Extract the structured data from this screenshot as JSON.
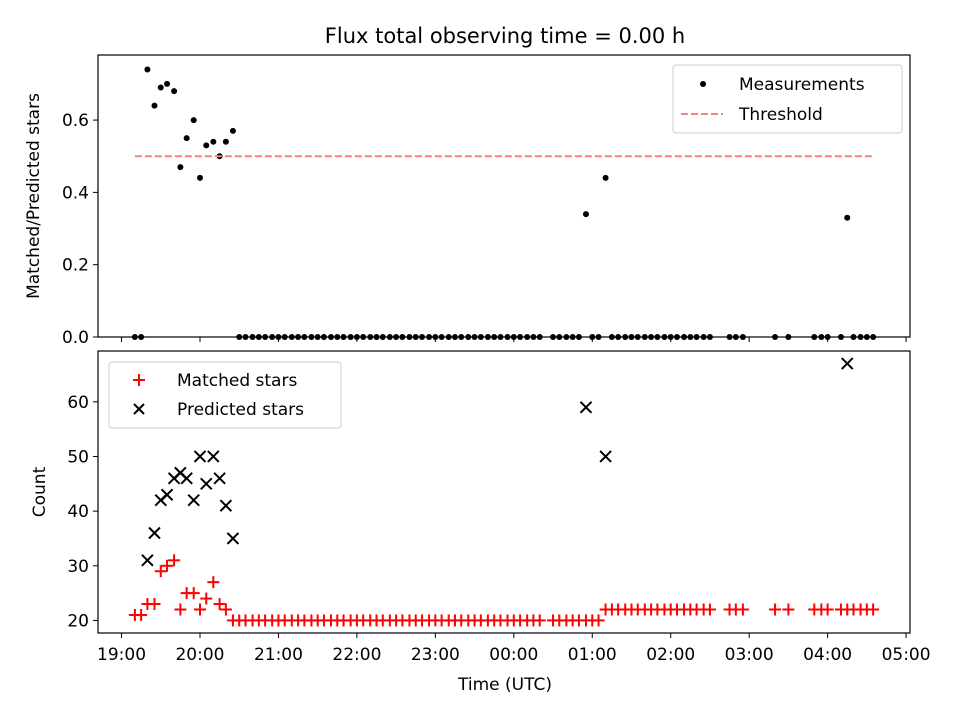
{
  "figure": {
    "title": "Flux total observing time = 0.00 h",
    "xlabel": "Time (UTC)"
  },
  "colors": {
    "measurement": "#000000",
    "threshold": "#ff7f7f",
    "matched": "#ff0000",
    "predicted": "#000000"
  },
  "x_ticks": [
    "19:00",
    "20:00",
    "21:00",
    "22:00",
    "23:00",
    "00:00",
    "01:00",
    "02:00",
    "03:00",
    "04:00",
    "05:00"
  ],
  "chart_data": [
    {
      "type": "scatter",
      "ylabel": "Matched/Predicted stars",
      "xlim": [
        18.7,
        29.05
      ],
      "ylim": [
        0,
        0.78
      ],
      "yticks": [
        "0.0",
        "0.2",
        "0.4",
        "0.6"
      ],
      "legend_position": "upper-right",
      "series": [
        {
          "name": "Measurements",
          "kind": "points",
          "x": [
            19.17,
            19.25,
            19.33,
            19.42,
            19.5,
            19.58,
            19.67,
            19.75,
            19.83,
            19.92,
            20.0,
            20.08,
            20.17,
            20.25,
            20.33,
            20.42,
            20.5,
            20.58,
            20.67,
            20.75,
            20.83,
            20.92,
            21.0,
            21.08,
            21.17,
            21.25,
            21.33,
            21.42,
            21.5,
            21.58,
            21.67,
            21.75,
            21.83,
            21.92,
            22.0,
            22.08,
            22.17,
            22.25,
            22.33,
            22.42,
            22.5,
            22.58,
            22.67,
            22.75,
            22.83,
            22.92,
            23.0,
            23.08,
            23.17,
            23.25,
            23.33,
            23.42,
            23.5,
            23.58,
            23.67,
            23.75,
            23.83,
            23.92,
            24.0,
            24.08,
            24.17,
            24.25,
            24.33,
            24.5,
            24.58,
            24.67,
            24.75,
            24.83,
            24.92,
            25.0,
            25.08,
            25.17,
            25.25,
            25.33,
            25.42,
            25.5,
            25.58,
            25.67,
            25.75,
            25.83,
            25.92,
            26.0,
            26.08,
            26.17,
            26.25,
            26.33,
            26.42,
            26.5,
            26.75,
            26.83,
            26.92,
            27.33,
            27.5,
            27.83,
            27.92,
            28.0,
            28.17,
            28.25,
            28.33,
            28.42,
            28.5,
            28.58
          ],
          "y": [
            0,
            0,
            0.74,
            0.64,
            0.69,
            0.7,
            0.68,
            0.47,
            0.55,
            0.6,
            0.44,
            0.53,
            0.54,
            0.5,
            0.54,
            0.57,
            0,
            0,
            0,
            0,
            0,
            0,
            0,
            0,
            0,
            0,
            0,
            0,
            0,
            0,
            0,
            0,
            0,
            0,
            0,
            0,
            0,
            0,
            0,
            0,
            0,
            0,
            0,
            0,
            0,
            0,
            0,
            0,
            0,
            0,
            0,
            0,
            0,
            0,
            0,
            0,
            0,
            0,
            0,
            0,
            0,
            0,
            0,
            0,
            0,
            0,
            0,
            0,
            0.34,
            0,
            0,
            0.44,
            0,
            0,
            0,
            0,
            0,
            0,
            0,
            0,
            0,
            0,
            0,
            0,
            0,
            0,
            0,
            0,
            0,
            0,
            0,
            0,
            0,
            0,
            0,
            0,
            0,
            0.33,
            0,
            0,
            0,
            0
          ]
        },
        {
          "name": "Threshold",
          "kind": "dashed-line",
          "x": [
            19.17,
            28.58
          ],
          "y": [
            0.5,
            0.5
          ]
        }
      ]
    },
    {
      "type": "scatter",
      "ylabel": "Count",
      "xlim": [
        18.7,
        29.05
      ],
      "ylim": [
        17.7,
        69.3
      ],
      "yticks": [
        "20",
        "30",
        "40",
        "50",
        "60"
      ],
      "legend_position": "upper-left",
      "series": [
        {
          "name": "Matched stars",
          "marker": "plus",
          "x": [
            19.17,
            19.25,
            19.33,
            19.42,
            19.5,
            19.58,
            19.67,
            19.75,
            19.83,
            19.92,
            20.0,
            20.08,
            20.17,
            20.25,
            20.33,
            20.42,
            20.5,
            20.58,
            20.67,
            20.75,
            20.83,
            20.92,
            21.0,
            21.08,
            21.17,
            21.25,
            21.33,
            21.42,
            21.5,
            21.58,
            21.67,
            21.75,
            21.83,
            21.92,
            22.0,
            22.08,
            22.17,
            22.25,
            22.33,
            22.42,
            22.5,
            22.58,
            22.67,
            22.75,
            22.83,
            22.92,
            23.0,
            23.08,
            23.17,
            23.25,
            23.33,
            23.42,
            23.5,
            23.58,
            23.67,
            23.75,
            23.83,
            23.92,
            24.0,
            24.08,
            24.17,
            24.25,
            24.33,
            24.5,
            24.58,
            24.67,
            24.75,
            24.83,
            24.92,
            25.0,
            25.08,
            25.17,
            25.25,
            25.33,
            25.42,
            25.5,
            25.58,
            25.67,
            25.75,
            25.83,
            25.92,
            26.0,
            26.08,
            26.17,
            26.25,
            26.33,
            26.42,
            26.5,
            26.75,
            26.83,
            26.92,
            27.33,
            27.5,
            27.83,
            27.92,
            28.0,
            28.17,
            28.25,
            28.33,
            28.42,
            28.5,
            28.58
          ],
          "y": [
            21,
            21,
            23,
            23,
            29,
            30,
            31,
            22,
            25,
            25,
            22,
            24,
            27,
            23,
            22,
            20,
            20,
            20,
            20,
            20,
            20,
            20,
            20,
            20,
            20,
            20,
            20,
            20,
            20,
            20,
            20,
            20,
            20,
            20,
            20,
            20,
            20,
            20,
            20,
            20,
            20,
            20,
            20,
            20,
            20,
            20,
            20,
            20,
            20,
            20,
            20,
            20,
            20,
            20,
            20,
            20,
            20,
            20,
            20,
            20,
            20,
            20,
            20,
            20,
            20,
            20,
            20,
            20,
            20,
            20,
            20,
            22,
            22,
            22,
            22,
            22,
            22,
            22,
            22,
            22,
            22,
            22,
            22,
            22,
            22,
            22,
            22,
            22,
            22,
            22,
            22,
            22,
            22,
            22,
            22,
            22,
            22,
            22,
            22,
            22,
            22,
            22
          ]
        },
        {
          "name": "Predicted stars",
          "marker": "x",
          "x": [
            19.33,
            19.42,
            19.5,
            19.58,
            19.67,
            19.75,
            19.83,
            19.92,
            20.0,
            20.08,
            20.17,
            20.25,
            20.33,
            20.42,
            24.92,
            25.17,
            28.25
          ],
          "y": [
            31,
            36,
            42,
            43,
            46,
            47,
            46,
            42,
            50,
            45,
            50,
            46,
            41,
            35,
            59,
            50,
            67
          ]
        }
      ]
    }
  ]
}
